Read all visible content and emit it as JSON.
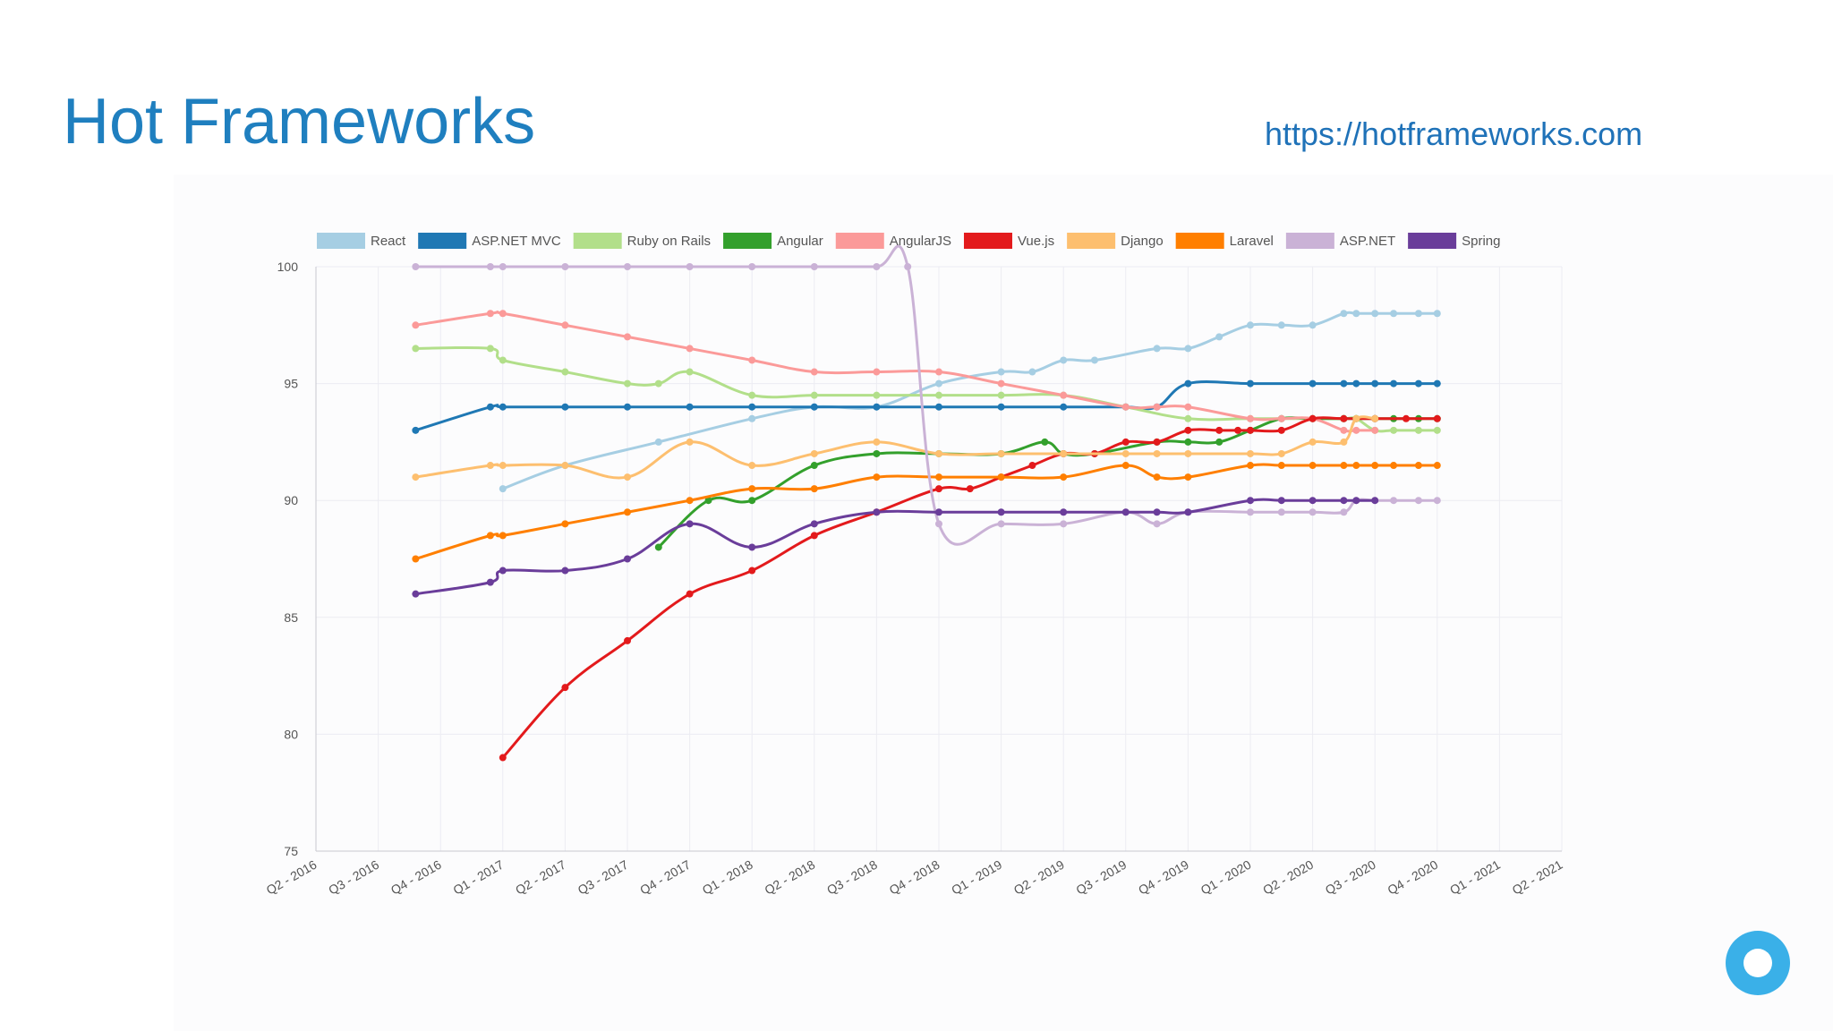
{
  "slide": {
    "title": "Hot Frameworks",
    "link": "https://hotframeworks.com"
  },
  "chart_data": {
    "type": "line",
    "x": [
      "Q2 - 2016",
      "Q3 - 2016",
      "Q4 - 2016",
      "Q1 - 2017",
      "Q2 - 2017",
      "Q3 - 2017",
      "Q4 - 2017",
      "Q1 - 2018",
      "Q2 - 2018",
      "Q3 - 2018",
      "Q4 - 2018",
      "Q1 - 2019",
      "Q2 - 2019",
      "Q3 - 2019",
      "Q4 - 2019",
      "Q1 - 2020",
      "Q2 - 2020",
      "Q3 - 2020",
      "Q4 - 2020",
      "Q1 - 2021",
      "Q2 - 2021"
    ],
    "ylim": [
      75,
      100
    ],
    "yticks": [
      75,
      80,
      85,
      90,
      95,
      100
    ],
    "grid": true,
    "legend_position": "top",
    "series": [
      {
        "name": "React",
        "color": "#a6cee3",
        "points": [
          [
            3,
            90.5
          ],
          [
            4,
            91.5
          ],
          [
            5.5,
            92.5
          ],
          [
            7,
            93.5
          ],
          [
            8,
            94
          ],
          [
            9,
            94
          ],
          [
            10,
            95
          ],
          [
            11,
            95.5
          ],
          [
            11.5,
            95.5
          ],
          [
            12,
            96
          ],
          [
            12.5,
            96
          ],
          [
            13.5,
            96.5
          ],
          [
            14,
            96.5
          ],
          [
            14.5,
            97
          ],
          [
            15,
            97.5
          ],
          [
            15.5,
            97.5
          ],
          [
            16,
            97.5
          ],
          [
            16.5,
            98
          ],
          [
            16.7,
            98
          ],
          [
            17,
            98
          ],
          [
            17.3,
            98
          ],
          [
            17.7,
            98
          ],
          [
            18,
            98
          ]
        ]
      },
      {
        "name": "ASP.NET MVC",
        "color": "#1f78b4",
        "points": [
          [
            1.6,
            93
          ],
          [
            2.8,
            94
          ],
          [
            3,
            94
          ],
          [
            4,
            94
          ],
          [
            5,
            94
          ],
          [
            6,
            94
          ],
          [
            7,
            94
          ],
          [
            8,
            94
          ],
          [
            9,
            94
          ],
          [
            10,
            94
          ],
          [
            11,
            94
          ],
          [
            12,
            94
          ],
          [
            13,
            94
          ],
          [
            13.5,
            94
          ],
          [
            14,
            95
          ],
          [
            15,
            95
          ],
          [
            16,
            95
          ],
          [
            16.5,
            95
          ],
          [
            16.7,
            95
          ],
          [
            17,
            95
          ],
          [
            17.3,
            95
          ],
          [
            17.7,
            95
          ],
          [
            18,
            95
          ]
        ]
      },
      {
        "name": "Ruby on Rails",
        "color": "#b2df8a",
        "points": [
          [
            1.6,
            96.5
          ],
          [
            2.8,
            96.5
          ],
          [
            3,
            96
          ],
          [
            4,
            95.5
          ],
          [
            5,
            95
          ],
          [
            5.5,
            95
          ],
          [
            6,
            95.5
          ],
          [
            7,
            94.5
          ],
          [
            8,
            94.5
          ],
          [
            9,
            94.5
          ],
          [
            10,
            94.5
          ],
          [
            11,
            94.5
          ],
          [
            12,
            94.5
          ],
          [
            13,
            94
          ],
          [
            14,
            93.5
          ],
          [
            15,
            93.5
          ],
          [
            16,
            93.5
          ],
          [
            16.5,
            93.5
          ],
          [
            16.7,
            93.5
          ],
          [
            17,
            93
          ],
          [
            17.3,
            93
          ],
          [
            17.7,
            93
          ],
          [
            18,
            93
          ]
        ]
      },
      {
        "name": "Angular",
        "color": "#33a02c",
        "points": [
          [
            5.5,
            88
          ],
          [
            6.3,
            90
          ],
          [
            7,
            90
          ],
          [
            8,
            91.5
          ],
          [
            9,
            92
          ],
          [
            10,
            92
          ],
          [
            11,
            92
          ],
          [
            11.7,
            92.5
          ],
          [
            12,
            92
          ],
          [
            12.5,
            92
          ],
          [
            13.5,
            92.5
          ],
          [
            14,
            92.5
          ],
          [
            14.5,
            92.5
          ],
          [
            15,
            93
          ],
          [
            15.5,
            93.5
          ],
          [
            16,
            93.5
          ],
          [
            16.5,
            93.5
          ],
          [
            16.7,
            93.5
          ],
          [
            17,
            93.5
          ],
          [
            17.3,
            93.5
          ],
          [
            17.7,
            93.5
          ],
          [
            18,
            93.5
          ]
        ]
      },
      {
        "name": "AngularJS",
        "color": "#fb9a99",
        "points": [
          [
            1.6,
            97.5
          ],
          [
            2.8,
            98
          ],
          [
            3,
            98
          ],
          [
            4,
            97.5
          ],
          [
            5,
            97
          ],
          [
            6,
            96.5
          ],
          [
            7,
            96
          ],
          [
            8,
            95.5
          ],
          [
            9,
            95.5
          ],
          [
            10,
            95.5
          ],
          [
            11,
            95
          ],
          [
            12,
            94.5
          ],
          [
            13,
            94
          ],
          [
            13.5,
            94
          ],
          [
            14,
            94
          ],
          [
            15,
            93.5
          ],
          [
            15.5,
            93.5
          ],
          [
            16,
            93.5
          ],
          [
            16.5,
            93
          ],
          [
            16.7,
            93
          ],
          [
            17,
            93
          ]
        ]
      },
      {
        "name": "Vue.js",
        "color": "#e31a1c",
        "points": [
          [
            3,
            79
          ],
          [
            4,
            82
          ],
          [
            5,
            84
          ],
          [
            6,
            86
          ],
          [
            7,
            87
          ],
          [
            8,
            88.5
          ],
          [
            9,
            89.5
          ],
          [
            10,
            90.5
          ],
          [
            10.5,
            90.5
          ],
          [
            11,
            91
          ],
          [
            11.5,
            91.5
          ],
          [
            12,
            92
          ],
          [
            12.5,
            92
          ],
          [
            13,
            92.5
          ],
          [
            13.5,
            92.5
          ],
          [
            14,
            93
          ],
          [
            14.5,
            93
          ],
          [
            14.8,
            93
          ],
          [
            15,
            93
          ],
          [
            15.5,
            93
          ],
          [
            16,
            93.5
          ],
          [
            16.5,
            93.5
          ],
          [
            17,
            93.5
          ],
          [
            17.5,
            93.5
          ],
          [
            18,
            93.5
          ]
        ]
      },
      {
        "name": "Django",
        "color": "#fdbf6f",
        "points": [
          [
            1.6,
            91
          ],
          [
            2.8,
            91.5
          ],
          [
            3,
            91.5
          ],
          [
            4,
            91.5
          ],
          [
            5,
            91
          ],
          [
            6,
            92.5
          ],
          [
            7,
            91.5
          ],
          [
            8,
            92
          ],
          [
            9,
            92.5
          ],
          [
            10,
            92
          ],
          [
            11,
            92
          ],
          [
            12,
            92
          ],
          [
            13,
            92
          ],
          [
            13.5,
            92
          ],
          [
            14,
            92
          ],
          [
            15,
            92
          ],
          [
            15.5,
            92
          ],
          [
            16,
            92.5
          ],
          [
            16.5,
            92.5
          ],
          [
            16.7,
            93.5
          ],
          [
            17,
            93.5
          ]
        ]
      },
      {
        "name": "Laravel",
        "color": "#ff7f00",
        "points": [
          [
            1.6,
            87.5
          ],
          [
            2.8,
            88.5
          ],
          [
            3,
            88.5
          ],
          [
            4,
            89
          ],
          [
            5,
            89.5
          ],
          [
            6,
            90
          ],
          [
            7,
            90.5
          ],
          [
            8,
            90.5
          ],
          [
            9,
            91
          ],
          [
            10,
            91
          ],
          [
            11,
            91
          ],
          [
            12,
            91
          ],
          [
            13,
            91.5
          ],
          [
            13.5,
            91
          ],
          [
            14,
            91
          ],
          [
            15,
            91.5
          ],
          [
            15.5,
            91.5
          ],
          [
            16,
            91.5
          ],
          [
            16.5,
            91.5
          ],
          [
            16.7,
            91.5
          ],
          [
            17,
            91.5
          ],
          [
            17.3,
            91.5
          ],
          [
            17.7,
            91.5
          ],
          [
            18,
            91.5
          ]
        ]
      },
      {
        "name": "ASP.NET",
        "color": "#cab2d6",
        "points": [
          [
            1.6,
            100
          ],
          [
            2.8,
            100
          ],
          [
            3,
            100
          ],
          [
            4,
            100
          ],
          [
            5,
            100
          ],
          [
            6,
            100
          ],
          [
            7,
            100
          ],
          [
            8,
            100
          ],
          [
            9,
            100
          ],
          [
            9.5,
            100
          ],
          [
            10,
            89
          ],
          [
            11,
            89
          ],
          [
            12,
            89
          ],
          [
            13,
            89.5
          ],
          [
            13.5,
            89
          ],
          [
            14,
            89.5
          ],
          [
            15,
            89.5
          ],
          [
            15.5,
            89.5
          ],
          [
            16,
            89.5
          ],
          [
            16.5,
            89.5
          ],
          [
            16.7,
            90
          ],
          [
            17,
            90
          ],
          [
            17.3,
            90
          ],
          [
            17.7,
            90
          ],
          [
            18,
            90
          ]
        ]
      },
      {
        "name": "Spring",
        "color": "#6a3d9a",
        "points": [
          [
            1.6,
            86
          ],
          [
            2.8,
            86.5
          ],
          [
            3,
            87
          ],
          [
            4,
            87
          ],
          [
            5,
            87.5
          ],
          [
            6,
            89
          ],
          [
            7,
            88
          ],
          [
            8,
            89
          ],
          [
            9,
            89.5
          ],
          [
            10,
            89.5
          ],
          [
            11,
            89.5
          ],
          [
            12,
            89.5
          ],
          [
            13,
            89.5
          ],
          [
            13.5,
            89.5
          ],
          [
            14,
            89.5
          ],
          [
            15,
            90
          ],
          [
            15.5,
            90
          ],
          [
            16,
            90
          ],
          [
            16.5,
            90
          ],
          [
            16.7,
            90
          ],
          [
            17,
            90
          ]
        ]
      }
    ]
  }
}
